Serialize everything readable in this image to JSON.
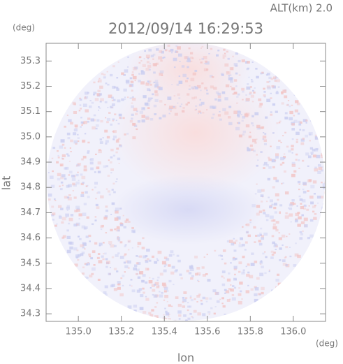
{
  "chart_data": {
    "type": "map",
    "title": "2012/09/14 16:29:53",
    "annotation": "ALT(km) 2.0",
    "x_label": "lon",
    "y_label": "lat",
    "x_unit": "(deg)",
    "y_unit": "(deg)",
    "xlim": [
      134.85,
      136.15
    ],
    "ylim": [
      34.27,
      35.37
    ],
    "xticks": [
      {
        "value": 135.0,
        "label": "135.0"
      },
      135.2,
      135.4,
      135.6,
      135.8,
      {
        "value": 136.0,
        "label": "136.0"
      }
    ],
    "yticks": [
      34.3,
      34.4,
      34.5,
      34.6,
      34.7,
      34.8,
      34.9,
      {
        "value": 35.0,
        "label": "35.0"
      },
      35.1,
      35.2,
      35.3
    ]
  }
}
